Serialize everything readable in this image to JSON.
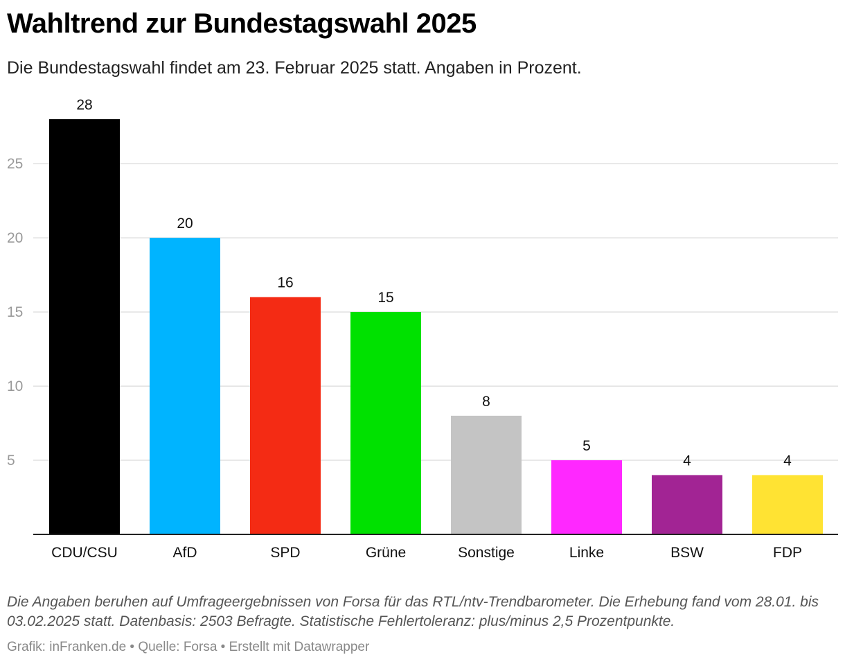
{
  "chart_data": {
    "type": "bar",
    "title": "Wahltrend zur Bundestagswahl 2025",
    "subtitle": "Die Bundestagswahl findet am 23. Februar 2025 statt. Angaben in Prozent.",
    "categories": [
      "CDU/CSU",
      "AfD",
      "SPD",
      "Grüne",
      "Sonstige",
      "Linke",
      "BSW",
      "FDP"
    ],
    "values": [
      28,
      20,
      16,
      15,
      8,
      5,
      4,
      4
    ],
    "colors": [
      "#000000",
      "#00b4ff",
      "#f42b14",
      "#00e100",
      "#c4c4c4",
      "#ff28ff",
      "#a22494",
      "#ffe333"
    ],
    "yticks": [
      5,
      10,
      15,
      20,
      25
    ],
    "ylim": [
      0,
      28
    ],
    "grid": true,
    "xlabel": "",
    "ylabel": ""
  },
  "footer": {
    "notes": "Die Angaben beruhen auf Umfrageergebnissen von Forsa für das RTL/ntv-Trendbarometer. Die Erhebung fand vom 28.01. bis 03.02.2025 statt. Datenbasis: 2503 Befragte. Statistische Fehlertoleranz: plus/minus 2,5 Prozentpunkte.",
    "source": "Grafik: inFranken.de • Quelle: Forsa • Erstellt mit Datawrapper"
  }
}
